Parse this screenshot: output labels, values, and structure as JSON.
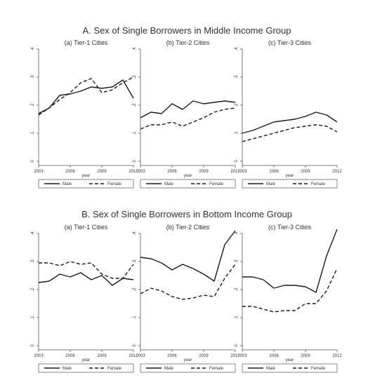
{
  "groups": [
    {
      "title": "A. Sex of Single Borrowers in Middle Income Group"
    },
    {
      "title": "B. Sex of Single Borrowers in Bottom Income Group"
    }
  ],
  "legend": {
    "male": "Male",
    "female": "Female"
  },
  "xlabel": "year",
  "colors": {
    "line": "#1a1a1a",
    "axis": "#555555",
    "text": "#333333"
  },
  "chart_data": [
    {
      "type": "line",
      "group": 0,
      "title": "(a) Tier-1 Cities",
      "x": [
        2003,
        2004,
        2005,
        2006,
        2007,
        2008,
        2009,
        2010,
        2011,
        2012
      ],
      "xticks": [
        "2003",
        "2006",
        "2009",
        "2012"
      ],
      "yticks": [
        "0",
        ".1",
        ".2",
        ".3",
        ".4"
      ],
      "ylim": [
        0,
        0.4
      ],
      "xlim": [
        2003,
        2012
      ],
      "grid": false,
      "series": [
        {
          "name": "Male",
          "style": "solid",
          "values": [
            0.17,
            0.19,
            0.235,
            0.24,
            0.25,
            0.265,
            0.26,
            0.265,
            0.29,
            0.225
          ]
        },
        {
          "name": "Female",
          "style": "dashed",
          "values": [
            0.165,
            0.19,
            0.22,
            0.245,
            0.28,
            0.295,
            0.245,
            0.255,
            0.28,
            0.3
          ]
        }
      ]
    },
    {
      "type": "line",
      "group": 0,
      "title": "(b) Tier-2 Cities",
      "x": [
        2003,
        2004,
        2005,
        2006,
        2007,
        2008,
        2009,
        2010,
        2011,
        2012
      ],
      "xticks": [
        "2003",
        "2006",
        "2009",
        "2012"
      ],
      "yticks": [
        "0",
        ".1",
        ".2",
        ".3",
        ".4"
      ],
      "ylim": [
        0,
        0.4
      ],
      "xlim": [
        2003,
        2012
      ],
      "grid": false,
      "series": [
        {
          "name": "Male",
          "style": "solid",
          "values": [
            0.155,
            0.175,
            0.17,
            0.205,
            0.185,
            0.215,
            0.205,
            0.21,
            0.215,
            0.21
          ]
        },
        {
          "name": "Female",
          "style": "dashed",
          "values": [
            0.115,
            0.13,
            0.13,
            0.14,
            0.125,
            0.14,
            0.155,
            0.175,
            0.185,
            0.19
          ]
        }
      ]
    },
    {
      "type": "line",
      "group": 0,
      "title": "(c) Tier-3 Cities",
      "x": [
        2003,
        2004,
        2005,
        2006,
        2007,
        2008,
        2009,
        2010,
        2011,
        2012
      ],
      "xticks": [
        "2003",
        "2006",
        "2009",
        "2012"
      ],
      "yticks": [
        "0",
        ".1",
        ".2",
        ".3",
        ".4"
      ],
      "ylim": [
        0,
        0.4
      ],
      "xlim": [
        2003,
        2012
      ],
      "grid": false,
      "series": [
        {
          "name": "Male",
          "style": "solid",
          "values": [
            0.1,
            0.11,
            0.125,
            0.14,
            0.145,
            0.15,
            0.16,
            0.175,
            0.165,
            0.14
          ]
        },
        {
          "name": "Female",
          "style": "dashed",
          "values": [
            0.07,
            0.08,
            0.09,
            0.1,
            0.11,
            0.12,
            0.125,
            0.13,
            0.125,
            0.105
          ]
        }
      ]
    },
    {
      "type": "line",
      "group": 1,
      "title": "(a) Tier-1 Cities",
      "x": [
        2003,
        2004,
        2005,
        2006,
        2007,
        2008,
        2009,
        2010,
        2011,
        2012
      ],
      "xticks": [
        "2003",
        "2006",
        "2009",
        "2012"
      ],
      "yticks": [
        "0",
        ".1",
        ".2",
        ".3",
        ".4"
      ],
      "ylim": [
        0,
        0.4
      ],
      "xlim": [
        2003,
        2012
      ],
      "grid": false,
      "series": [
        {
          "name": "Male",
          "style": "solid",
          "values": [
            0.225,
            0.23,
            0.255,
            0.245,
            0.26,
            0.235,
            0.25,
            0.215,
            0.24,
            0.235
          ]
        },
        {
          "name": "Female",
          "style": "dashed",
          "values": [
            0.295,
            0.295,
            0.285,
            0.3,
            0.29,
            0.295,
            0.255,
            0.24,
            0.24,
            0.29
          ]
        }
      ]
    },
    {
      "type": "line",
      "group": 1,
      "title": "(b) Tier-2 Cities",
      "x": [
        2003,
        2004,
        2005,
        2006,
        2007,
        2008,
        2009,
        2010,
        2011,
        2012
      ],
      "xticks": [
        "2003",
        "2006",
        "2009",
        "2012"
      ],
      "yticks": [
        "0",
        ".1",
        ".2",
        ".3",
        ".4"
      ],
      "ylim": [
        0,
        0.4
      ],
      "xlim": [
        2003,
        2012
      ],
      "grid": false,
      "series": [
        {
          "name": "Male",
          "style": "solid",
          "values": [
            0.315,
            0.31,
            0.295,
            0.27,
            0.29,
            0.275,
            0.255,
            0.23,
            0.36,
            0.41
          ]
        },
        {
          "name": "Female",
          "style": "dashed",
          "values": [
            0.185,
            0.205,
            0.195,
            0.175,
            0.165,
            0.17,
            0.18,
            0.175,
            0.24,
            0.29
          ]
        }
      ]
    },
    {
      "type": "line",
      "group": 1,
      "title": "(c) Tier-3 Cities",
      "x": [
        2003,
        2004,
        2005,
        2006,
        2007,
        2008,
        2009,
        2010,
        2011,
        2012
      ],
      "xticks": [
        "2003",
        "2006",
        "2009",
        "2012"
      ],
      "yticks": [
        "0",
        ".1",
        ".2",
        ".3",
        ".4"
      ],
      "ylim": [
        0,
        0.4
      ],
      "xlim": [
        2003,
        2012
      ],
      "grid": false,
      "series": [
        {
          "name": "Male",
          "style": "solid",
          "values": [
            0.245,
            0.245,
            0.235,
            0.205,
            0.215,
            0.215,
            0.21,
            0.19,
            0.32,
            0.415
          ]
        },
        {
          "name": "Female",
          "style": "dashed",
          "values": [
            0.14,
            0.14,
            0.13,
            0.12,
            0.125,
            0.125,
            0.15,
            0.15,
            0.195,
            0.275
          ]
        }
      ]
    }
  ]
}
